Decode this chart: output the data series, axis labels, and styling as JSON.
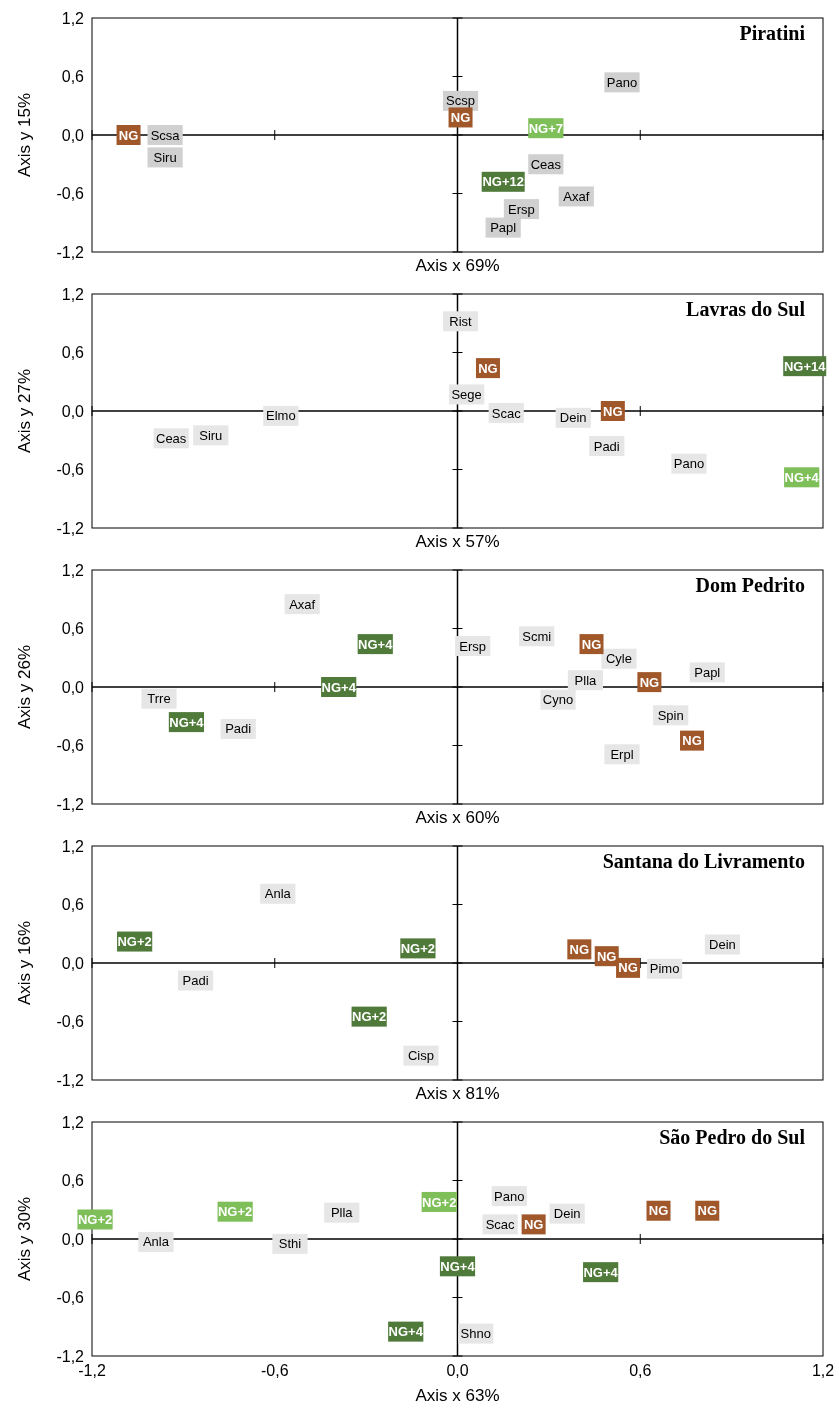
{
  "chart_data": [
    {
      "type": "scatter",
      "title": "Piratini",
      "xlabel": "Axis x 69%",
      "ylabel": "Axis y 15%",
      "xlim": [
        -1.2,
        1.2
      ],
      "ylim": [
        -1.2,
        1.2
      ],
      "xticks": [
        {
          "value": -1.2,
          "label": null
        },
        {
          "value": -0.6,
          "label": null
        },
        {
          "value": 0,
          "label": null
        },
        {
          "value": 0.6,
          "label": null
        },
        {
          "value": 1.2,
          "label": null
        }
      ],
      "yticks": [
        {
          "value": -1.2,
          "label": "-1,2"
        },
        {
          "value": -0.6,
          "label": "-0,6"
        },
        {
          "value": 0,
          "label": "0,0"
        },
        {
          "value": 0.6,
          "label": "0,6"
        },
        {
          "value": 1.2,
          "label": "1,2"
        }
      ],
      "tick_labels": "y",
      "marker": "square",
      "series": [
        {
          "color": "#d0d0d0",
          "x": [
            -0.96,
            -0.96,
            0.01,
            0.29,
            0.39,
            0.21,
            0.15,
            0.54
          ],
          "values": [
            0,
            -0.23,
            0.35,
            -0.3,
            -0.63,
            -0.76,
            -0.95,
            0.54
          ],
          "value_labels": [
            "Scsa",
            "Siru",
            "Scsp",
            "Ceas",
            "Axaf",
            "Ersp",
            "Papl",
            "Pano"
          ]
        },
        {
          "color": "#a0572a",
          "x": [
            -1.08,
            0.01
          ],
          "values": [
            0,
            0.18
          ],
          "value_labels": [
            "NG",
            "NG"
          ]
        },
        {
          "color": "#4f7a3a",
          "x": [
            0.15
          ],
          "values": [
            -0.48
          ],
          "value_labels": [
            "NG+12"
          ]
        },
        {
          "color": "#7fbf5a",
          "x": [
            0.29
          ],
          "values": [
            0.07
          ],
          "value_labels": [
            "NG+7"
          ]
        }
      ]
    },
    {
      "type": "scatter",
      "title": "Lavras do Sul",
      "xlabel": "Axis x 57%",
      "ylabel": "Axis y 27%",
      "xlim": [
        -1.2,
        1.2
      ],
      "ylim": [
        -1.2,
        1.2
      ],
      "xticks": [
        {
          "value": -1.2,
          "label": null
        },
        {
          "value": -0.6,
          "label": null
        },
        {
          "value": 0,
          "label": null
        },
        {
          "value": 0.6,
          "label": null
        },
        {
          "value": 1.2,
          "label": null
        }
      ],
      "yticks": [
        {
          "value": -1.2,
          "label": "-1,2"
        },
        {
          "value": -0.6,
          "label": "-0,6"
        },
        {
          "value": 0,
          "label": "0,0"
        },
        {
          "value": 0.6,
          "label": "0,6"
        },
        {
          "value": 1.2,
          "label": "1,2"
        }
      ],
      "tick_labels": "y",
      "marker": "square",
      "series": [
        {
          "color": "#e6e6e6",
          "x": [
            0.01,
            0.03,
            0.16,
            0.38,
            0.49,
            0.76,
            -0.58,
            -0.94,
            -0.81
          ],
          "values": [
            0.92,
            0.17,
            -0.02,
            -0.07,
            -0.36,
            -0.54,
            -0.05,
            -0.28,
            -0.25
          ],
          "value_labels": [
            "Rist",
            "Sege",
            "Scac",
            "Dein",
            "Padi",
            "Pano",
            "Elmo",
            "Ceas",
            "Siru"
          ]
        },
        {
          "color": "#a0572a",
          "x": [
            0.1,
            0.51
          ],
          "values": [
            0.44,
            0
          ],
          "value_labels": [
            "NG",
            "NG"
          ]
        },
        {
          "color": "#4f7a3a",
          "x": [
            1.14
          ],
          "values": [
            0.46
          ],
          "value_labels": [
            "NG+14"
          ]
        },
        {
          "color": "#7fbf5a",
          "x": [
            1.13
          ],
          "values": [
            -0.68
          ],
          "value_labels": [
            "NG+4"
          ]
        }
      ]
    },
    {
      "type": "scatter",
      "title": "Dom Pedrito",
      "xlabel": "Axis x 60%",
      "ylabel": "Axis y 26%",
      "xlim": [
        -1.2,
        1.2
      ],
      "ylim": [
        -1.2,
        1.2
      ],
      "xticks": [
        {
          "value": -1.2,
          "label": null
        },
        {
          "value": -0.6,
          "label": null
        },
        {
          "value": 0,
          "label": null
        },
        {
          "value": 0.6,
          "label": null
        },
        {
          "value": 1.2,
          "label": null
        }
      ],
      "yticks": [
        {
          "value": -1.2,
          "label": "-1,2"
        },
        {
          "value": -0.6,
          "label": "-0,6"
        },
        {
          "value": 0,
          "label": "0,0"
        },
        {
          "value": 0.6,
          "label": "0,6"
        },
        {
          "value": 1.2,
          "label": "1,2"
        }
      ],
      "tick_labels": "y",
      "marker": "square",
      "series": [
        {
          "color": "#e6e6e6",
          "x": [
            -0.51,
            -0.98,
            -0.72,
            0.05,
            0.26,
            0.53,
            0.42,
            0.33,
            0.82,
            0.7,
            0.54
          ],
          "values": [
            0.85,
            -0.12,
            -0.43,
            0.42,
            0.52,
            0.29,
            0.07,
            -0.13,
            0.15,
            -0.29,
            -0.69
          ],
          "value_labels": [
            "Axaf",
            "Trre",
            "Padi",
            "Ersp",
            "Scmi",
            "Cyle",
            "Plla",
            "Cyno",
            "Papl",
            "Spin",
            "Erpl"
          ]
        },
        {
          "color": "#a0572a",
          "x": [
            0.44,
            0.63,
            0.77
          ],
          "values": [
            0.44,
            0.05,
            -0.55
          ],
          "value_labels": [
            "NG",
            "NG",
            "NG"
          ]
        },
        {
          "color": "#4f7a3a",
          "x": [
            -0.27,
            -0.39,
            -0.89
          ],
          "values": [
            0.44,
            0,
            -0.36
          ],
          "value_labels": [
            "NG+4",
            "NG+4",
            "NG+4"
          ]
        }
      ]
    },
    {
      "type": "scatter",
      "title": "Santana do Livramento",
      "xlabel": "Axis x 81%",
      "ylabel": "Axis y 16%",
      "xlim": [
        -1.2,
        1.2
      ],
      "ylim": [
        -1.2,
        1.2
      ],
      "xticks": [
        {
          "value": -1.2,
          "label": null
        },
        {
          "value": -0.6,
          "label": null
        },
        {
          "value": 0,
          "label": null
        },
        {
          "value": 0.6,
          "label": null
        },
        {
          "value": 1.2,
          "label": null
        }
      ],
      "yticks": [
        {
          "value": -1.2,
          "label": "-1,2"
        },
        {
          "value": -0.6,
          "label": "-0,6"
        },
        {
          "value": 0,
          "label": "0,0"
        },
        {
          "value": 0.6,
          "label": "0,6"
        },
        {
          "value": 1.2,
          "label": "1,2"
        }
      ],
      "tick_labels": "y",
      "marker": "square",
      "series": [
        {
          "color": "#e6e6e6",
          "x": [
            -0.59,
            -0.86,
            -0.12,
            0.68,
            0.87
          ],
          "values": [
            0.71,
            -0.18,
            -0.95,
            -0.06,
            0.19
          ],
          "value_labels": [
            "Anla",
            "Padi",
            "Cisp",
            "Pimo",
            "Dein"
          ]
        },
        {
          "color": "#a0572a",
          "x": [
            0.4,
            0.49,
            0.56
          ],
          "values": [
            0.14,
            0.07,
            -0.05
          ],
          "value_labels": [
            "NG",
            "NG",
            "NG"
          ]
        },
        {
          "color": "#4f7a3a",
          "x": [
            -1.06,
            -0.13,
            -0.29
          ],
          "values": [
            0.22,
            0.15,
            -0.55
          ],
          "value_labels": [
            "NG+2",
            "NG+2",
            "NG+2"
          ]
        }
      ]
    },
    {
      "type": "scatter",
      "title": "São Pedro do Sul",
      "xlabel": "Axis x 63%",
      "ylabel": "Axis y 30%",
      "xlim": [
        -1.2,
        1.2
      ],
      "ylim": [
        -1.2,
        1.2
      ],
      "xticks": [
        {
          "value": -1.2,
          "label": "-1,2"
        },
        {
          "value": -0.6,
          "label": "-0,6"
        },
        {
          "value": 0,
          "label": "0,0"
        },
        {
          "value": 0.6,
          "label": "0,6"
        },
        {
          "value": 1.2,
          "label": "1,2"
        }
      ],
      "yticks": [
        {
          "value": -1.2,
          "label": "-1,2"
        },
        {
          "value": -0.6,
          "label": "-0,6"
        },
        {
          "value": 0,
          "label": "0,0"
        },
        {
          "value": 0.6,
          "label": "0,6"
        },
        {
          "value": 1.2,
          "label": "1,2"
        }
      ],
      "marker": "square",
      "series": [
        {
          "color": "#e6e6e6",
          "x": [
            -0.99,
            -0.55,
            -0.38,
            0.06,
            0.17,
            0.14,
            0.36
          ],
          "values": [
            -0.03,
            -0.05,
            0.27,
            -0.97,
            0.44,
            0.15,
            0.26
          ],
          "value_labels": [
            "Anla",
            "Sthi",
            "Plla",
            "Shno",
            "Pano",
            "Scac",
            "Dein"
          ]
        },
        {
          "color": "#a0572a",
          "x": [
            0.25,
            0.66,
            0.82
          ],
          "values": [
            0.15,
            0.29,
            0.29
          ],
          "value_labels": [
            "NG",
            "NG",
            "NG"
          ]
        },
        {
          "color": "#4f7a3a",
          "x": [
            0,
            -0.17,
            0.47
          ],
          "values": [
            -0.28,
            -0.95,
            -0.34
          ],
          "value_labels": [
            "NG+4",
            "NG+4",
            "NG+4"
          ]
        },
        {
          "color": "#7fbf5a",
          "x": [
            -1.19,
            -0.73,
            -0.06
          ],
          "values": [
            0.2,
            0.28,
            0.38
          ],
          "value_labels": [
            "NG+2",
            "NG+2",
            "NG+2"
          ]
        }
      ]
    }
  ]
}
